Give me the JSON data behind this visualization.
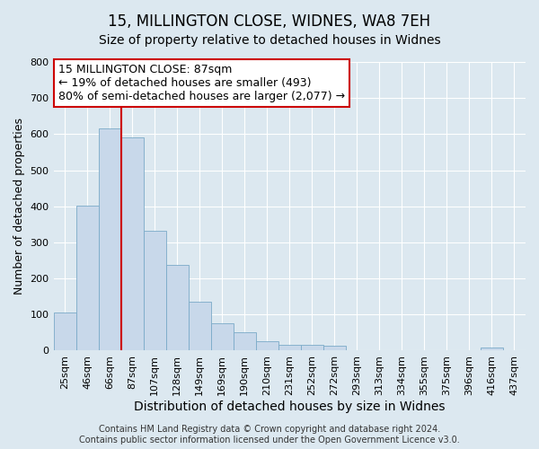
{
  "title": "15, MILLINGTON CLOSE, WIDNES, WA8 7EH",
  "subtitle": "Size of property relative to detached houses in Widnes",
  "xlabel": "Distribution of detached houses by size in Widnes",
  "ylabel": "Number of detached properties",
  "bin_labels": [
    "25sqm",
    "46sqm",
    "66sqm",
    "87sqm",
    "107sqm",
    "128sqm",
    "149sqm",
    "169sqm",
    "190sqm",
    "210sqm",
    "231sqm",
    "252sqm",
    "272sqm",
    "293sqm",
    "313sqm",
    "334sqm",
    "355sqm",
    "375sqm",
    "396sqm",
    "416sqm",
    "437sqm"
  ],
  "bar_values": [
    105,
    403,
    615,
    590,
    333,
    237,
    136,
    76,
    50,
    26,
    16,
    16,
    14,
    0,
    0,
    0,
    0,
    0,
    0,
    8,
    0
  ],
  "bar_color": "#c8d8ea",
  "bar_edge_color": "#7aaac8",
  "vline_x_index": 3,
  "vline_color": "#cc0000",
  "ylim": [
    0,
    800
  ],
  "yticks": [
    0,
    100,
    200,
    300,
    400,
    500,
    600,
    700,
    800
  ],
  "annotation_text": "15 MILLINGTON CLOSE: 87sqm\n← 19% of detached houses are smaller (493)\n80% of semi-detached houses are larger (2,077) →",
  "annotation_box_facecolor": "#ffffff",
  "annotation_box_edgecolor": "#cc0000",
  "footer_text": "Contains HM Land Registry data © Crown copyright and database right 2024.\nContains public sector information licensed under the Open Government Licence v3.0.",
  "background_color": "#dce8f0",
  "plot_bg_color": "#dce8f0",
  "title_fontsize": 12,
  "subtitle_fontsize": 10,
  "xlabel_fontsize": 10,
  "ylabel_fontsize": 9,
  "tick_fontsize": 8,
  "footer_fontsize": 7,
  "annotation_fontsize": 9
}
